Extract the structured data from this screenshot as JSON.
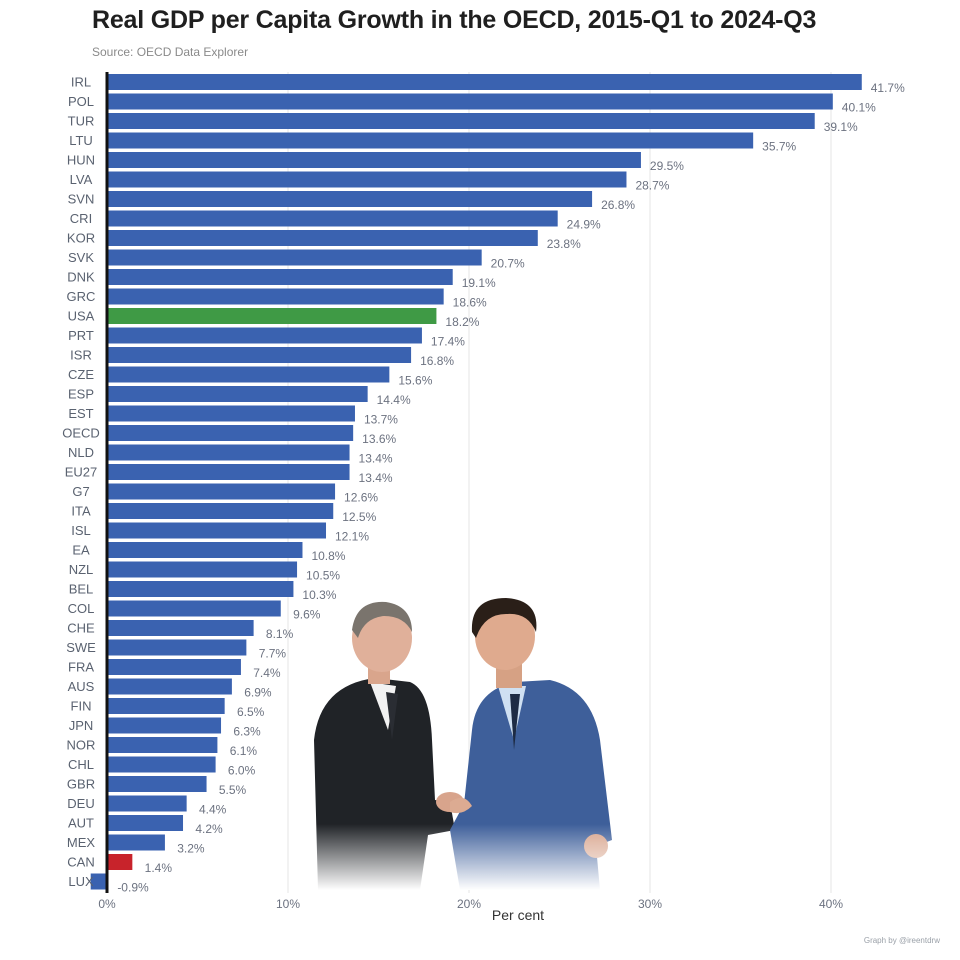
{
  "header": {
    "title": "Real GDP per Capita Growth in the OECD, 2015-Q1 to 2024-Q3",
    "source": "Source: OECD Data Explorer"
  },
  "footer": {
    "xlabel": "Per cent",
    "credit": "Graph by @ireentdrw"
  },
  "photo": {
    "description_icon": "two-men-handshake-photo"
  },
  "colors": {
    "default_bar": "#3a62b0",
    "highlight_usa": "#3f9a45",
    "highlight_can": "#c8232b",
    "grid": "#e6e6e6",
    "axis": "#111111"
  },
  "chart_data": {
    "type": "bar",
    "orientation": "horizontal",
    "title": "Real GDP per Capita Growth in the OECD, 2015-Q1 to 2024-Q3",
    "subtitle": "Source: OECD Data Explorer",
    "xlabel": "Per cent",
    "ylabel": "",
    "xlim": [
      -1,
      45
    ],
    "xticks": [
      0,
      10,
      20,
      30,
      40
    ],
    "xtick_labels": [
      "0%",
      "10%",
      "20%",
      "30%",
      "40%"
    ],
    "grid": "vertical",
    "categories": [
      "IRL",
      "POL",
      "TUR",
      "LTU",
      "HUN",
      "LVA",
      "SVN",
      "CRI",
      "KOR",
      "SVK",
      "DNK",
      "GRC",
      "USA",
      "PRT",
      "ISR",
      "CZE",
      "ESP",
      "EST",
      "OECD",
      "NLD",
      "EU27",
      "G7",
      "ITA",
      "ISL",
      "EA",
      "NZL",
      "BEL",
      "COL",
      "CHE",
      "SWE",
      "FRA",
      "AUS",
      "FIN",
      "JPN",
      "NOR",
      "CHL",
      "GBR",
      "DEU",
      "AUT",
      "MEX",
      "CAN",
      "LUX"
    ],
    "values": [
      41.7,
      40.1,
      39.1,
      35.7,
      29.5,
      28.7,
      26.8,
      24.9,
      23.8,
      20.7,
      19.1,
      18.6,
      18.2,
      17.4,
      16.8,
      15.6,
      14.4,
      13.7,
      13.6,
      13.4,
      13.4,
      12.6,
      12.5,
      12.1,
      10.8,
      10.5,
      10.3,
      9.6,
      8.1,
      7.7,
      7.4,
      6.9,
      6.5,
      6.3,
      6.1,
      6.0,
      5.5,
      4.4,
      4.2,
      3.2,
      1.4,
      -0.9
    ],
    "labels": [
      "41.7%",
      "40.1%",
      "39.1%",
      "35.7%",
      "29.5%",
      "28.7%",
      "26.8%",
      "24.9%",
      "23.8%",
      "20.7%",
      "19.1%",
      "18.6%",
      "18.2%",
      "17.4%",
      "16.8%",
      "15.6%",
      "14.4%",
      "13.7%",
      "13.6%",
      "13.4%",
      "13.4%",
      "12.6%",
      "12.5%",
      "12.1%",
      "10.8%",
      "10.5%",
      "10.3%",
      "9.6%",
      "8.1%",
      "7.7%",
      "7.4%",
      "6.9%",
      "6.5%",
      "6.3%",
      "6.1%",
      "6.0%",
      "5.5%",
      "4.4%",
      "4.2%",
      "3.2%",
      "1.4%",
      "-0.9%"
    ],
    "highlights": {
      "USA": "#3f9a45",
      "CAN": "#c8232b"
    }
  }
}
